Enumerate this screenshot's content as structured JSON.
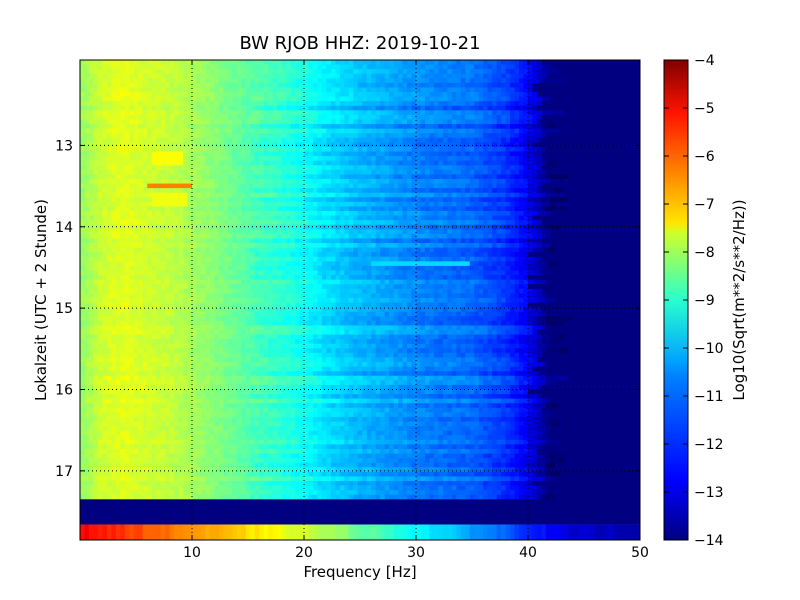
{
  "chart_data": {
    "type": "heatmap",
    "title": "BW RJOB HHZ: 2019-10-21",
    "xlabel": "Frequency [Hz]",
    "ylabel": "Lokalzeit (UTC + 2 Stunde)",
    "xlim": [
      0,
      50
    ],
    "ylim": [
      17.85,
      11.95
    ],
    "x_ticks": [
      10,
      20,
      30,
      40,
      50
    ],
    "y_ticks": [
      13,
      14,
      15,
      16,
      17
    ],
    "grid": true,
    "y_axis_inverted": true,
    "colorbar": {
      "label": "Log10(Sqrt(m**2/s**2/Hz))",
      "range": [
        -14,
        -4
      ],
      "ticks": [
        -14,
        -13,
        -12,
        -11,
        -10,
        -9,
        -8,
        -7,
        -6,
        -5,
        -4
      ],
      "colormap": "jet"
    },
    "profile": {
      "frequency": [
        0,
        2,
        4,
        6,
        8,
        10,
        12,
        15,
        18,
        20,
        22,
        25,
        28,
        30,
        33,
        35,
        38,
        40,
        42,
        50
      ],
      "log_amplitude": [
        -8.8,
        -8.2,
        -8.0,
        -8.2,
        -8.3,
        -8.6,
        -8.9,
        -9.4,
        -9.8,
        -10.1,
        -10.5,
        -10.9,
        -11.2,
        -11.4,
        -11.6,
        -11.7,
        -12.2,
        -12.8,
        -14,
        -14
      ]
    },
    "data_gap": {
      "time_start": 17.35,
      "time_end": 17.66,
      "value": -14
    },
    "highlights": [
      {
        "time_start": 13.08,
        "time_end": 13.2,
        "freq_start": 6.5,
        "freq_end": 9,
        "value": -7.8
      },
      {
        "time_start": 13.48,
        "time_end": 13.52,
        "freq_start": 6,
        "freq_end": 10,
        "value": -6.5
      },
      {
        "time_start": 13.62,
        "time_end": 13.74,
        "freq_start": 6.5,
        "freq_end": 9.5,
        "value": -7.9
      },
      {
        "time_start": 14.43,
        "time_end": 14.47,
        "freq_start": 26,
        "freq_end": 35,
        "value": -10.6
      }
    ],
    "final_row": {
      "time_start": 17.66,
      "time_end": 17.85,
      "frequency": [
        0,
        4,
        8,
        12,
        16,
        20,
        25,
        30,
        35,
        38,
        40,
        44,
        50
      ],
      "log_amplitude": [
        -5.2,
        -5.8,
        -6.4,
        -7.0,
        -7.6,
        -8.2,
        -9.2,
        -10.2,
        -11.2,
        -11.8,
        -12.3,
        -13.3,
        -13.5
      ]
    }
  }
}
